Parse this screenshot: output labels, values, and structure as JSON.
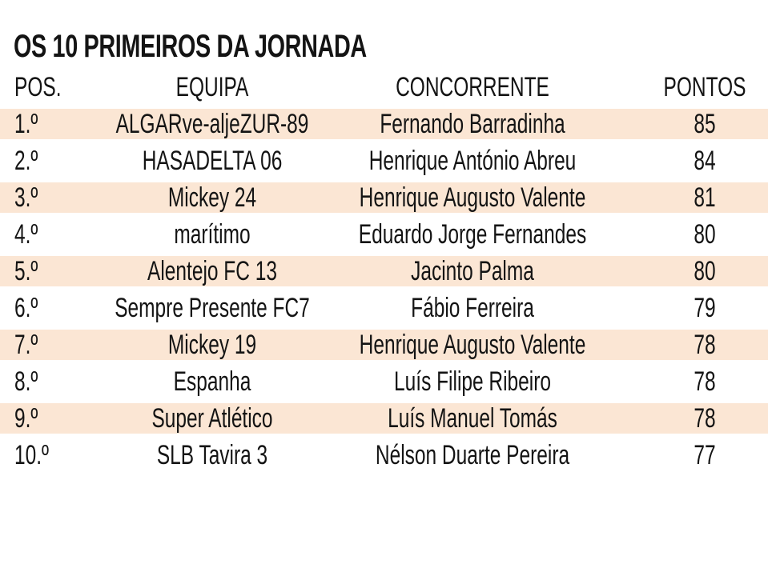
{
  "title": "OS 10 PRIMEIROS DA JORNADA",
  "columns": {
    "pos": "POS.",
    "team": "EQUIPA",
    "competitor": "CONCORRENTE",
    "points": "PONTOS"
  },
  "colors": {
    "band": "#fbe6d4",
    "text": "#141414",
    "background": "#ffffff"
  },
  "rows": [
    {
      "pos": "1.º",
      "team": "ALGARve-aljeZUR-89",
      "competitor": "Fernando Barradinha",
      "points": "85"
    },
    {
      "pos": "2.º",
      "team": "HASADELTA 06",
      "competitor": "Henrique António Abreu",
      "points": "84"
    },
    {
      "pos": "3.º",
      "team": "Mickey 24",
      "competitor": "Henrique Augusto Valente",
      "points": "81"
    },
    {
      "pos": "4.º",
      "team": "marítimo",
      "competitor": "Eduardo Jorge Fernandes",
      "points": "80"
    },
    {
      "pos": "5.º",
      "team": "Alentejo FC 13",
      "competitor": "Jacinto Palma",
      "points": "80"
    },
    {
      "pos": "6.º",
      "team": "Sempre Presente FC7",
      "competitor": "Fábio Ferreira",
      "points": "79"
    },
    {
      "pos": "7.º",
      "team": "Mickey 19",
      "competitor": "Henrique Augusto Valente",
      "points": "78"
    },
    {
      "pos": "8.º",
      "team": "Espanha",
      "competitor": "Luís Filipe Ribeiro",
      "points": "78"
    },
    {
      "pos": "9.º",
      "team": "Super Atlético",
      "competitor": "Luís Manuel Tomás",
      "points": "78"
    },
    {
      "pos": "10.º",
      "team": "SLB Tavira 3",
      "competitor": "Nélson Duarte Pereira",
      "points": "77"
    }
  ]
}
